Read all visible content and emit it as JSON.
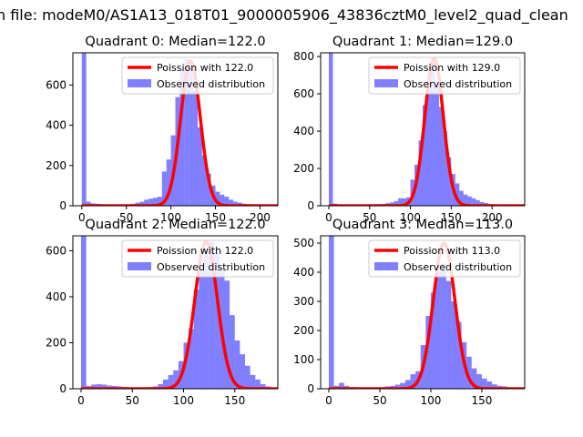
{
  "figure": {
    "suptitle": "n file: modeM0/AS1A13_018T01_9000005906_43836cztM0_level2_quad_clean"
  },
  "colors": {
    "hist": "#0000ff",
    "curve": "#ff0000"
  },
  "chart_data": [
    {
      "type": "bar",
      "title": "Quadrant 0: Median=122.0",
      "median": 122.0,
      "xlim": [
        -10,
        220
      ],
      "ylim": [
        0,
        760
      ],
      "xticks": [
        0,
        50,
        100,
        150,
        200
      ],
      "yticks": [
        0,
        200,
        400,
        600
      ],
      "bin_width": 5,
      "hist": {
        "name": "Observed distribution",
        "x": [
          0,
          5,
          10,
          15,
          20,
          25,
          30,
          35,
          40,
          45,
          50,
          55,
          60,
          65,
          70,
          75,
          80,
          85,
          90,
          95,
          100,
          105,
          110,
          115,
          120,
          125,
          130,
          135,
          140,
          145,
          150,
          155,
          160,
          165,
          170,
          175,
          180,
          185,
          190,
          195,
          200,
          205,
          210
        ],
        "values": [
          760,
          20,
          12,
          10,
          8,
          6,
          5,
          4,
          4,
          3,
          5,
          10,
          15,
          20,
          30,
          35,
          40,
          45,
          170,
          230,
          350,
          540,
          680,
          730,
          690,
          570,
          390,
          250,
          160,
          100,
          70,
          55,
          45,
          30,
          20,
          15,
          10,
          8,
          5,
          4,
          3,
          2,
          1
        ]
      },
      "poisson": {
        "name": "Poission with 122.0",
        "lambda": 122.0,
        "peak": 720
      }
    },
    {
      "type": "bar",
      "title": "Quadrant 1: Median=129.0",
      "median": 129.0,
      "xlim": [
        -10,
        240
      ],
      "ylim": [
        0,
        820
      ],
      "xticks": [
        0,
        50,
        100,
        150,
        200
      ],
      "yticks": [
        0,
        200,
        400,
        600,
        800
      ],
      "bin_width": 5,
      "hist": {
        "name": "Observed distribution",
        "x": [
          0,
          5,
          10,
          15,
          20,
          25,
          30,
          35,
          40,
          45,
          50,
          55,
          60,
          65,
          70,
          75,
          80,
          85,
          90,
          95,
          100,
          105,
          110,
          115,
          120,
          125,
          130,
          135,
          140,
          145,
          150,
          155,
          160,
          165,
          170,
          175,
          180,
          185,
          190,
          195,
          200,
          205,
          210,
          215,
          220,
          225
        ],
        "values": [
          820,
          12,
          8,
          6,
          5,
          4,
          4,
          3,
          3,
          3,
          4,
          6,
          8,
          10,
          14,
          18,
          25,
          40,
          40,
          45,
          140,
          220,
          350,
          540,
          660,
          770,
          650,
          530,
          400,
          260,
          170,
          120,
          80,
          60,
          50,
          40,
          30,
          20,
          15,
          10,
          6,
          4,
          3,
          2,
          2,
          1
        ]
      },
      "poisson": {
        "name": "Poission with 129.0",
        "lambda": 129.0,
        "peak": 790
      }
    },
    {
      "type": "bar",
      "title": "Quadrant 2: Median=122.0",
      "median": 122.0,
      "xlim": [
        -8,
        192
      ],
      "ylim": [
        0,
        665
      ],
      "xticks": [
        0,
        50,
        100,
        150
      ],
      "yticks": [
        0,
        200,
        400,
        600
      ],
      "bin_width": 5,
      "hist": {
        "name": "Observed distribution",
        "x": [
          0,
          5,
          10,
          15,
          20,
          25,
          30,
          35,
          40,
          45,
          50,
          55,
          60,
          65,
          70,
          75,
          80,
          85,
          90,
          95,
          100,
          105,
          110,
          115,
          120,
          125,
          130,
          135,
          140,
          145,
          150,
          155,
          160,
          165,
          170,
          175,
          180
        ],
        "values": [
          665,
          12,
          18,
          20,
          18,
          14,
          12,
          10,
          8,
          6,
          5,
          5,
          6,
          8,
          10,
          20,
          40,
          60,
          80,
          120,
          200,
          260,
          430,
          520,
          610,
          640,
          590,
          530,
          470,
          320,
          210,
          150,
          100,
          60,
          40,
          20,
          10
        ]
      },
      "poisson": {
        "name": "Poission with 122.0",
        "lambda": 122.0,
        "peak": 640
      }
    },
    {
      "type": "bar",
      "title": "Quadrant 3: Median=113.0",
      "median": 113.0,
      "xlim": [
        -8,
        192
      ],
      "ylim": [
        0,
        525
      ],
      "xticks": [
        0,
        50,
        100,
        150
      ],
      "yticks": [
        0,
        100,
        200,
        300,
        400,
        500
      ],
      "bin_width": 5,
      "hist": {
        "name": "Observed distribution",
        "x": [
          0,
          5,
          10,
          15,
          20,
          25,
          30,
          35,
          40,
          45,
          50,
          55,
          60,
          65,
          70,
          75,
          80,
          85,
          90,
          95,
          100,
          105,
          110,
          115,
          120,
          125,
          130,
          135,
          140,
          145,
          150,
          155,
          160,
          165,
          170,
          175,
          180
        ],
        "values": [
          525,
          10,
          20,
          10,
          6,
          5,
          4,
          4,
          3,
          3,
          5,
          8,
          10,
          14,
          20,
          30,
          50,
          60,
          150,
          250,
          330,
          400,
          430,
          370,
          300,
          230,
          160,
          110,
          70,
          50,
          35,
          25,
          15,
          10,
          8,
          5,
          3
        ]
      },
      "poisson": {
        "name": "Poission with 113.0",
        "lambda": 113.0,
        "peak": 500
      }
    }
  ]
}
